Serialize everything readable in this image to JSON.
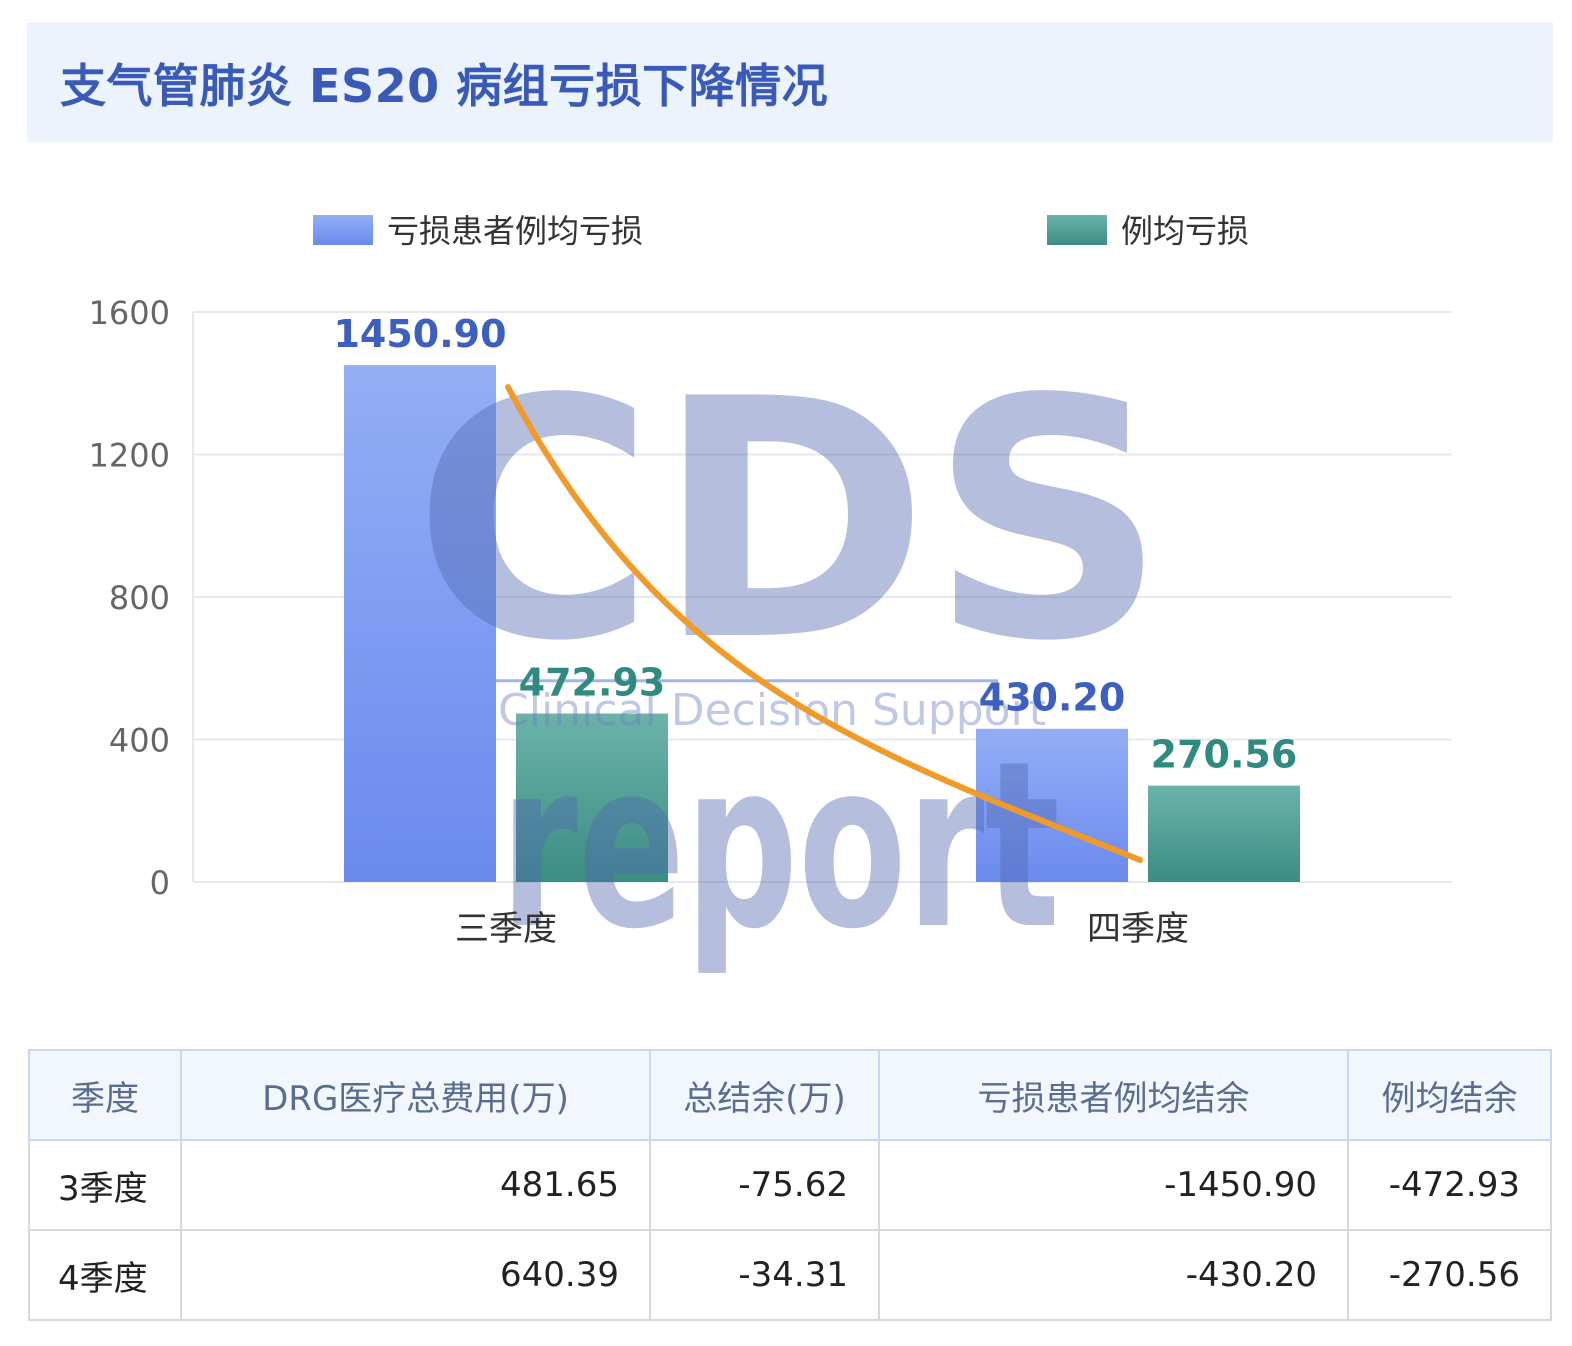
{
  "title": "支气管肺炎 ES20 病组亏损下降情况",
  "chart_data": {
    "type": "bar",
    "categories": [
      "三季度",
      "四季度"
    ],
    "series": [
      {
        "name": "亏损患者例均亏损",
        "values": [
          1450.9,
          430.2
        ],
        "labels": [
          "1450.90",
          "430.20"
        ],
        "color": "#6f8ff0"
      },
      {
        "name": "例均亏损",
        "values": [
          472.93,
          270.56
        ],
        "labels": [
          "472.93",
          "270.56"
        ],
        "color": "#3f958c"
      }
    ],
    "ylim": [
      0,
      1600
    ],
    "yticks": [
      0,
      400,
      800,
      1200,
      1600
    ],
    "ytick_labels": [
      "0",
      "400",
      "800",
      "1200",
      "1600"
    ],
    "legend_position": "top",
    "grid": true,
    "trend_color": "#f09a2a"
  },
  "watermark": {
    "letters": "CDS",
    "subtitle": "Clinical Decision Support",
    "word": "report"
  },
  "table": {
    "headers": [
      "季度",
      "DRG医疗总费用(万)",
      "总结余(万)",
      "亏损患者例均结余",
      "例均结余"
    ],
    "rows": [
      [
        "3季度",
        "481.65",
        "-75.62",
        "-1450.90",
        "-472.93"
      ],
      [
        "4季度",
        "640.39",
        "-34.31",
        "-430.20",
        "-270.56"
      ]
    ]
  }
}
